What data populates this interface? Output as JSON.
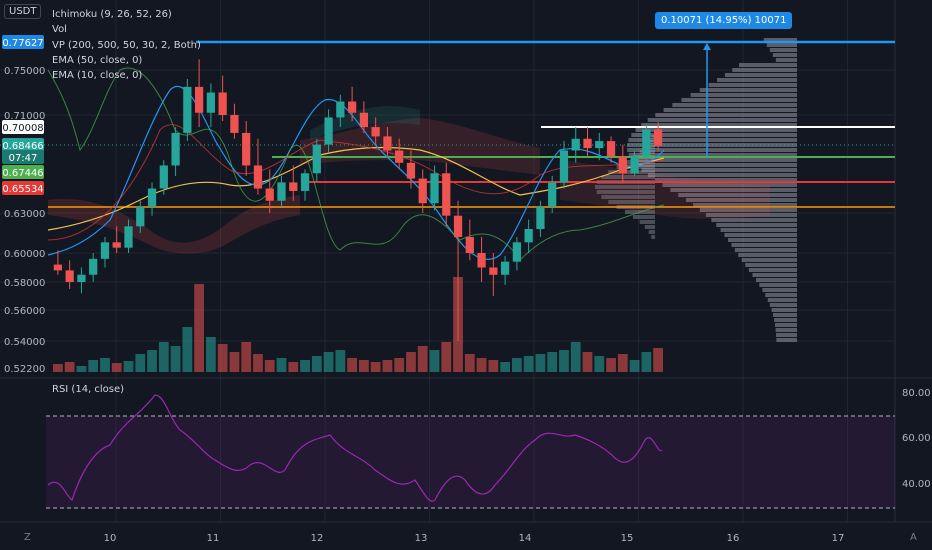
{
  "colors": {
    "bg": "#131722",
    "grid": "#1f2430",
    "text": "#b2b5be",
    "up": "#26a69a",
    "down": "#ef5350",
    "rsi": "#9c27b0",
    "blue": "#2196f3",
    "green": "#4caf50",
    "red": "#e53935",
    "orange": "#ff9800",
    "white": "#ffffff"
  },
  "legend": {
    "currency": "USDT",
    "ichimoku": "Ichimoku (9, 26, 52, 26)",
    "vol": "Vol",
    "vp": "VP (200, 500, 50, 30, 2, Both)",
    "ema50": "EMA (50, close, 0)",
    "ema10": "EMA (10, close, 0)",
    "rsi": "RSI (14, close)"
  },
  "price_axis": {
    "ticks": [
      "0.75000",
      "0.71000",
      "0.63000",
      "0.60000",
      "0.58000",
      "0.56000",
      "0.54000",
      "0.52200"
    ],
    "markers": [
      {
        "label": "0.77627",
        "color": "#2196f3"
      },
      {
        "label": "0.70008",
        "color": "#ffffff"
      },
      {
        "label": "0.68466",
        "color": "#26a69a"
      },
      {
        "label": "07:47",
        "color": "#26a69a"
      },
      {
        "label": "0.67446",
        "color": "#4caf50"
      },
      {
        "label": "0.65534",
        "color": "#e53935"
      }
    ]
  },
  "rsi_axis": {
    "ticks": [
      "80.00",
      "60.00",
      "40.00"
    ]
  },
  "time_axis": {
    "ticks": [
      "10",
      "11",
      "12",
      "13",
      "14",
      "15",
      "16",
      "17"
    ]
  },
  "measure_label": "0.10071 (14.95%) 10071",
  "corner_left": "Z",
  "corner_right": "A",
  "chart_data": {
    "type": "candlestick",
    "symbol_quote": "USDT",
    "x_labels": [
      "10",
      "11",
      "12",
      "13",
      "14",
      "15",
      "16",
      "17"
    ],
    "horizontal_levels": [
      {
        "price": 0.77627,
        "color": "#2196f3"
      },
      {
        "price": 0.70008,
        "color": "#ffffff"
      },
      {
        "price": 0.67446,
        "color": "#4caf50"
      },
      {
        "price": 0.65534,
        "color": "#e53935"
      },
      {
        "price": 0.635,
        "color": "#ff9800"
      }
    ],
    "last_price": 0.68466,
    "ohlc_approx": [
      [
        0.592,
        0.602,
        0.585,
        0.588
      ],
      [
        0.588,
        0.595,
        0.575,
        0.58
      ],
      [
        0.58,
        0.59,
        0.572,
        0.585
      ],
      [
        0.585,
        0.6,
        0.58,
        0.596
      ],
      [
        0.596,
        0.612,
        0.59,
        0.608
      ],
      [
        0.608,
        0.62,
        0.6,
        0.604
      ],
      [
        0.604,
        0.625,
        0.6,
        0.62
      ],
      [
        0.62,
        0.64,
        0.615,
        0.635
      ],
      [
        0.635,
        0.655,
        0.628,
        0.65
      ],
      [
        0.65,
        0.672,
        0.645,
        0.668
      ],
      [
        0.668,
        0.7,
        0.66,
        0.695
      ],
      [
        0.695,
        0.742,
        0.688,
        0.735
      ],
      [
        0.735,
        0.76,
        0.7,
        0.712
      ],
      [
        0.712,
        0.738,
        0.7,
        0.73
      ],
      [
        0.73,
        0.745,
        0.705,
        0.71
      ],
      [
        0.71,
        0.72,
        0.69,
        0.695
      ],
      [
        0.695,
        0.705,
        0.66,
        0.668
      ],
      [
        0.668,
        0.69,
        0.645,
        0.65
      ],
      [
        0.65,
        0.665,
        0.63,
        0.64
      ],
      [
        0.64,
        0.66,
        0.635,
        0.655
      ],
      [
        0.655,
        0.668,
        0.64,
        0.648
      ],
      [
        0.648,
        0.665,
        0.64,
        0.662
      ],
      [
        0.662,
        0.69,
        0.655,
        0.685
      ],
      [
        0.685,
        0.715,
        0.678,
        0.708
      ],
      [
        0.708,
        0.728,
        0.7,
        0.722
      ],
      [
        0.722,
        0.735,
        0.705,
        0.712
      ],
      [
        0.712,
        0.722,
        0.695,
        0.7
      ],
      [
        0.7,
        0.708,
        0.685,
        0.692
      ],
      [
        0.692,
        0.7,
        0.675,
        0.68
      ],
      [
        0.68,
        0.69,
        0.665,
        0.67
      ],
      [
        0.67,
        0.68,
        0.65,
        0.658
      ],
      [
        0.658,
        0.665,
        0.63,
        0.638
      ],
      [
        0.638,
        0.668,
        0.632,
        0.662
      ],
      [
        0.662,
        0.67,
        0.62,
        0.628
      ],
      [
        0.628,
        0.64,
        0.54,
        0.612
      ],
      [
        0.612,
        0.625,
        0.595,
        0.6
      ],
      [
        0.6,
        0.612,
        0.58,
        0.59
      ],
      [
        0.59,
        0.6,
        0.57,
        0.585
      ],
      [
        0.585,
        0.598,
        0.578,
        0.594
      ],
      [
        0.594,
        0.612,
        0.588,
        0.608
      ],
      [
        0.608,
        0.625,
        0.6,
        0.618
      ],
      [
        0.618,
        0.64,
        0.612,
        0.635
      ],
      [
        0.635,
        0.66,
        0.63,
        0.655
      ],
      [
        0.655,
        0.688,
        0.65,
        0.68
      ],
      [
        0.68,
        0.7,
        0.67,
        0.69
      ],
      [
        0.69,
        0.7,
        0.675,
        0.682
      ],
      [
        0.682,
        0.695,
        0.672,
        0.688
      ],
      [
        0.688,
        0.692,
        0.67,
        0.675
      ],
      [
        0.675,
        0.685,
        0.655,
        0.662
      ],
      [
        0.662,
        0.68,
        0.66,
        0.675
      ],
      [
        0.675,
        0.702,
        0.67,
        0.698
      ],
      [
        0.698,
        0.704,
        0.68,
        0.684
      ]
    ]
  }
}
